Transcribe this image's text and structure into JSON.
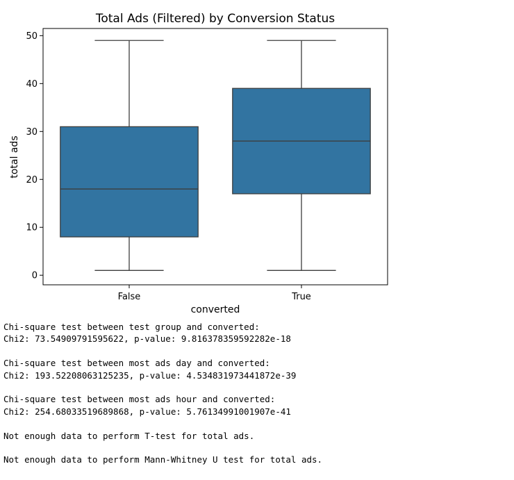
{
  "chart_data": {
    "type": "box",
    "title": "Total Ads (Filtered) by Conversion Status",
    "xlabel": "converted",
    "ylabel": "total ads",
    "ylim": [
      -2,
      51.5
    ],
    "yticks": [
      0,
      10,
      20,
      30,
      40,
      50
    ],
    "categories": [
      "False",
      "True"
    ],
    "boxes": [
      {
        "category": "False",
        "whisker_low": 1,
        "q1": 8,
        "median": 18,
        "q3": 31,
        "whisker_high": 49
      },
      {
        "category": "True",
        "whisker_low": 1,
        "q1": 17,
        "median": 28,
        "q3": 39,
        "whisker_high": 49
      }
    ],
    "box_color": "#3274a1",
    "line_color": "#3d3d3d",
    "grid": false,
    "legend": "none"
  },
  "output": {
    "lines": [
      "Chi-square test between test group and converted:",
      "Chi2: 73.54909791595622, p-value: 9.816378359592282e-18",
      "",
      "Chi-square test between most ads day and converted:",
      "Chi2: 193.52208063125235, p-value: 4.534831973441872e-39",
      "",
      "Chi-square test between most ads hour and converted:",
      "Chi2: 254.68033519689868, p-value: 5.76134991001907e-41",
      "",
      "Not enough data to perform T-test for total ads.",
      "",
      "Not enough data to perform Mann-Whitney U test for total ads."
    ]
  }
}
